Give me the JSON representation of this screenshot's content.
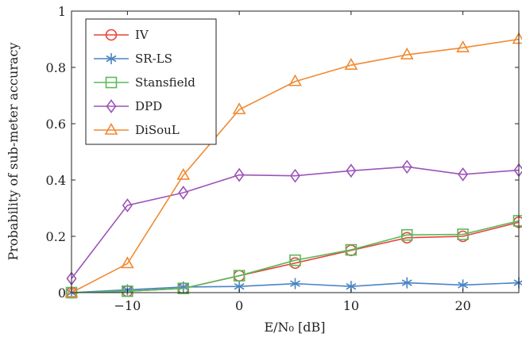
{
  "chart_data": {
    "type": "line",
    "title": "",
    "xlabel": "E/N₀ [dB]",
    "ylabel": "Probability of sub-meter accuracy",
    "xlim": [
      -15,
      25
    ],
    "ylim": [
      0,
      1
    ],
    "xticks": [
      -10,
      0,
      10,
      20
    ],
    "yticks": [
      0,
      0.2,
      0.4,
      0.6,
      0.8,
      1
    ],
    "xtick_labels": [
      "−10",
      "0",
      "10",
      "20"
    ],
    "ytick_labels": [
      "0",
      "0.2",
      "0.4",
      "0.6",
      "0.8",
      "1"
    ],
    "grid": false,
    "legend_position": "top-left",
    "x": [
      -15,
      -10,
      -5,
      0,
      5,
      10,
      15,
      20,
      25
    ],
    "series": [
      {
        "name": "IV",
        "color": "#e8423a",
        "marker": "circle",
        "values": [
          0.0,
          0.005,
          0.015,
          0.06,
          0.105,
          0.15,
          0.195,
          0.2,
          0.25
        ]
      },
      {
        "name": "SR-LS",
        "color": "#4a84c4",
        "marker": "star",
        "values": [
          0.0,
          0.01,
          0.02,
          0.022,
          0.032,
          0.022,
          0.035,
          0.027,
          0.035
        ]
      },
      {
        "name": "Stansfield",
        "color": "#5cb85c",
        "marker": "square",
        "values": [
          0.0,
          0.005,
          0.015,
          0.06,
          0.115,
          0.152,
          0.205,
          0.207,
          0.255
        ]
      },
      {
        "name": "DPD",
        "color": "#9c54b8",
        "marker": "diamond",
        "values": [
          0.05,
          0.31,
          0.355,
          0.418,
          0.415,
          0.433,
          0.447,
          0.42,
          0.435
        ]
      },
      {
        "name": "DiSouL",
        "color": "#f08a33",
        "marker": "triangle",
        "values": [
          0.0,
          0.103,
          0.417,
          0.65,
          0.75,
          0.808,
          0.845,
          0.87,
          0.9
        ]
      }
    ]
  }
}
